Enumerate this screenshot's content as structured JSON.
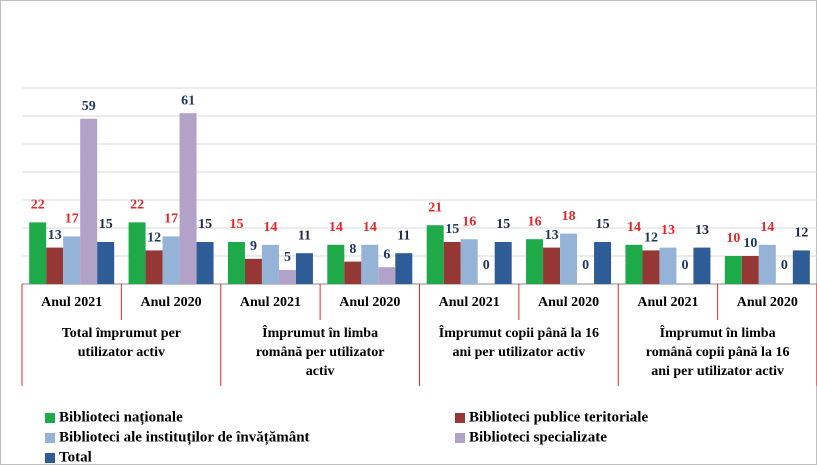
{
  "chart_data": {
    "type": "bar",
    "categories": [
      "Anul 2021",
      "Anul 2020",
      "Anul 2021",
      "Anul 2020",
      "Anul 2021",
      "Anul 2020",
      "Anul 2021",
      "Anul 2020"
    ],
    "group_labels": [
      [
        "Total împrumut per",
        "utilizator activ"
      ],
      [
        "Împrumut în limba",
        "română per utilizator",
        "activ"
      ],
      [
        "Împrumut copii până la 16",
        "ani per utilizator activ"
      ],
      [
        "Împrumut în limba",
        "română copii până la 16",
        "ani  per utilizator activ"
      ]
    ],
    "series": [
      {
        "name": "Biblioteci naționale",
        "color": "#1faa4a",
        "label_color": "#e8262a",
        "values": [
          22,
          22,
          15,
          14,
          21,
          16,
          14,
          10
        ]
      },
      {
        "name": "Biblioteci publice teritoriale",
        "color": "#953735",
        "label_color": "#1f3864",
        "values": [
          13,
          12,
          9,
          8,
          15,
          13,
          12,
          10
        ]
      },
      {
        "name": "Biblioteci ale instituților de învățământ",
        "color": "#95b3d7",
        "label_color": "#e8262a",
        "values": [
          17,
          17,
          14,
          14,
          16,
          18,
          13,
          14
        ]
      },
      {
        "name": "Biblioteci specializate",
        "color": "#b3a2c7",
        "label_color": "#1f3864",
        "values": [
          59,
          61,
          5,
          6,
          0,
          0,
          0,
          0
        ]
      },
      {
        "name": "Total",
        "color": "#2e5c96",
        "label_color": "#1f2a44",
        "values": [
          15,
          15,
          11,
          11,
          15,
          15,
          13,
          12
        ]
      }
    ],
    "ylim": [
      0,
      70
    ],
    "yticks": [
      0,
      10,
      20,
      30,
      40,
      50,
      60,
      70
    ],
    "grid": true
  }
}
